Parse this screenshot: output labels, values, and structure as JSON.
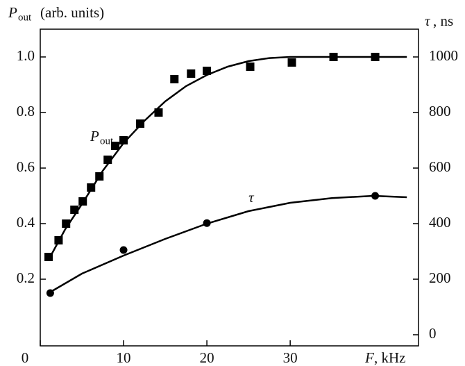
{
  "chart_data": {
    "type": "scatter",
    "y_label": {
      "symbol": "P",
      "subscript": "out",
      "text": "(arb. units)"
    },
    "y2_label": {
      "symbol": "τ",
      "text": ", ns"
    },
    "x_label": {
      "symbol": "F",
      "text": ", kHz"
    },
    "annotations": [
      {
        "symbol": "P",
        "subscript": "out",
        "x": 6,
        "y": 0.71
      },
      {
        "symbol": "τ",
        "x": 25,
        "y": 0.49
      }
    ],
    "xlim": [
      0,
      45.4
    ],
    "xticks": [
      0,
      10,
      20,
      30
    ],
    "ylim": [
      -0.04,
      1.1
    ],
    "yticks": [
      0.2,
      0.4,
      0.6,
      0.8,
      {
        "value": 1.0,
        "label": "1.0"
      }
    ],
    "y2lim": [
      -40,
      1100
    ],
    "y2ticks": [
      0,
      200,
      400,
      600,
      800,
      1000
    ],
    "series": [
      {
        "marker": "square",
        "color": "#000000",
        "x": [
          1,
          2.2,
          3.1,
          4.1,
          5.1,
          6.1,
          7.1,
          8.1,
          9,
          10,
          12,
          14.2,
          16.1,
          18.1,
          20,
          25.2,
          30.2,
          35.2,
          40.2
        ],
        "values": [
          0.28,
          0.34,
          0.4,
          0.45,
          0.48,
          0.53,
          0.57,
          0.63,
          0.68,
          0.7,
          0.76,
          0.8,
          0.92,
          0.94,
          0.95,
          0.965,
          0.98,
          1.0,
          1.0
        ]
      },
      {
        "marker": "circle",
        "color": "#000000",
        "axis": "y2",
        "x": [
          1.2,
          10,
          20,
          40.2
        ],
        "values": [
          150,
          305,
          402,
          500
        ]
      },
      {
        "marker": "line",
        "color": "#000000",
        "x": [
          1,
          3,
          5,
          7.5,
          10,
          12.5,
          15,
          17.5,
          20,
          22.5,
          25,
          27.5,
          30,
          35,
          40,
          44
        ],
        "values": [
          0.27,
          0.38,
          0.47,
          0.59,
          0.69,
          0.77,
          0.84,
          0.895,
          0.935,
          0.965,
          0.985,
          0.996,
          1.0,
          1.0,
          1.0,
          1.0
        ]
      },
      {
        "marker": "line",
        "color": "#000000",
        "axis": "y2",
        "x": [
          1,
          5,
          10,
          15,
          20,
          25,
          30,
          35,
          40,
          44
        ],
        "values": [
          150,
          220,
          285,
          345,
          400,
          445,
          475,
          492,
          500,
          495
        ]
      }
    ]
  }
}
